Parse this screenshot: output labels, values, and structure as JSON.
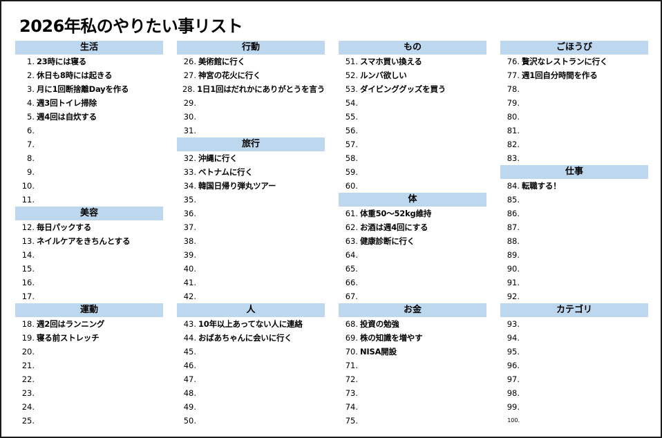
{
  "title": "2026年私のやりたい事リスト",
  "colors": {
    "header_bg": "#bdd7ee",
    "border": "#1a1a1a"
  },
  "columns": [
    {
      "sections": [
        {
          "category": "生活",
          "items": [
            {
              "n": "1.",
              "t": "23時には寝る"
            },
            {
              "n": "2.",
              "t": "休日も8時には起きる"
            },
            {
              "n": "3.",
              "t": "月に1回断捨離Dayを作る"
            },
            {
              "n": "4.",
              "t": "週3回トイレ掃除"
            },
            {
              "n": "5.",
              "t": "週4回は自炊する"
            },
            {
              "n": "6.",
              "t": ""
            },
            {
              "n": "7.",
              "t": ""
            },
            {
              "n": "8.",
              "t": ""
            },
            {
              "n": "9.",
              "t": ""
            },
            {
              "n": "10.",
              "t": ""
            },
            {
              "n": "11.",
              "t": ""
            }
          ]
        },
        {
          "category": "美容",
          "items": [
            {
              "n": "12.",
              "t": "毎日パックする"
            },
            {
              "n": "13.",
              "t": "ネイルケアをきちんとする"
            },
            {
              "n": "14.",
              "t": ""
            },
            {
              "n": "15.",
              "t": ""
            },
            {
              "n": "16.",
              "t": ""
            },
            {
              "n": "17.",
              "t": ""
            }
          ]
        },
        {
          "category": "運動",
          "items": [
            {
              "n": "18.",
              "t": "週2回はランニング"
            },
            {
              "n": "19.",
              "t": "寝る前ストレッチ"
            },
            {
              "n": "20.",
              "t": ""
            },
            {
              "n": "21.",
              "t": ""
            },
            {
              "n": "22.",
              "t": ""
            },
            {
              "n": "23.",
              "t": ""
            },
            {
              "n": "24.",
              "t": ""
            },
            {
              "n": "25.",
              "t": ""
            }
          ]
        }
      ]
    },
    {
      "sections": [
        {
          "category": "行動",
          "items": [
            {
              "n": "26.",
              "t": "美術館に行く"
            },
            {
              "n": "27.",
              "t": "神宮の花火に行く"
            },
            {
              "n": "28.",
              "t": "1日1回はだれかにありがとうを言う"
            },
            {
              "n": "29.",
              "t": ""
            },
            {
              "n": "30.",
              "t": ""
            },
            {
              "n": "31.",
              "t": ""
            }
          ]
        },
        {
          "category": "旅行",
          "items": [
            {
              "n": "32.",
              "t": "沖縄に行く"
            },
            {
              "n": "33.",
              "t": "ベトナムに行く"
            },
            {
              "n": "34.",
              "t": "韓国日帰り弾丸ツアー"
            },
            {
              "n": "35.",
              "t": ""
            },
            {
              "n": "36.",
              "t": ""
            },
            {
              "n": "37.",
              "t": ""
            },
            {
              "n": "38.",
              "t": ""
            },
            {
              "n": "39.",
              "t": ""
            },
            {
              "n": "40.",
              "t": ""
            },
            {
              "n": "41.",
              "t": ""
            },
            {
              "n": "42.",
              "t": ""
            }
          ]
        },
        {
          "category": "人",
          "items": [
            {
              "n": "43.",
              "t": "10年以上あってない人に連絡"
            },
            {
              "n": "44.",
              "t": "おばあちゃんに会いに行く"
            },
            {
              "n": "45.",
              "t": ""
            },
            {
              "n": "46.",
              "t": ""
            },
            {
              "n": "47.",
              "t": ""
            },
            {
              "n": "48.",
              "t": ""
            },
            {
              "n": "49.",
              "t": ""
            },
            {
              "n": "50.",
              "t": ""
            }
          ]
        }
      ]
    },
    {
      "sections": [
        {
          "category": "もの",
          "items": [
            {
              "n": "51.",
              "t": "スマホ買い換える"
            },
            {
              "n": "52.",
              "t": "ルンバ欲しい"
            },
            {
              "n": "53.",
              "t": "ダイビンググッズを買う"
            },
            {
              "n": "54.",
              "t": ""
            },
            {
              "n": "55.",
              "t": ""
            },
            {
              "n": "56.",
              "t": ""
            },
            {
              "n": "57.",
              "t": ""
            },
            {
              "n": "58.",
              "t": ""
            },
            {
              "n": "59.",
              "t": ""
            },
            {
              "n": "60.",
              "t": ""
            }
          ]
        },
        {
          "category": "体",
          "items": [
            {
              "n": "61.",
              "t": "体重50～52kg維持"
            },
            {
              "n": "62.",
              "t": "お酒は週4回にする"
            },
            {
              "n": "63.",
              "t": "健康診断に行く"
            },
            {
              "n": "64.",
              "t": ""
            },
            {
              "n": "65.",
              "t": ""
            },
            {
              "n": "66.",
              "t": ""
            },
            {
              "n": "67.",
              "t": ""
            }
          ]
        },
        {
          "category": "お金",
          "items": [
            {
              "n": "68.",
              "t": "投資の勉強"
            },
            {
              "n": "69.",
              "t": "株の知識を増やす"
            },
            {
              "n": "70.",
              "t": "NISA開設"
            },
            {
              "n": "71.",
              "t": ""
            },
            {
              "n": "72.",
              "t": ""
            },
            {
              "n": "73.",
              "t": ""
            },
            {
              "n": "74.",
              "t": ""
            },
            {
              "n": "75.",
              "t": ""
            }
          ]
        }
      ]
    },
    {
      "sections": [
        {
          "category": "ごほうび",
          "items": [
            {
              "n": "76.",
              "t": "贅沢なレストランに行く"
            },
            {
              "n": "77.",
              "t": "週1回自分時間を作る"
            },
            {
              "n": "78.",
              "t": ""
            },
            {
              "n": "79.",
              "t": ""
            },
            {
              "n": "80.",
              "t": ""
            },
            {
              "n": "81.",
              "t": ""
            },
            {
              "n": "82.",
              "t": ""
            },
            {
              "n": "83.",
              "t": ""
            }
          ]
        },
        {
          "category": "仕事",
          "items": [
            {
              "n": "84.",
              "t": "転職する！"
            },
            {
              "n": "85.",
              "t": ""
            },
            {
              "n": "86.",
              "t": ""
            },
            {
              "n": "87.",
              "t": ""
            },
            {
              "n": "88.",
              "t": ""
            },
            {
              "n": "89.",
              "t": ""
            },
            {
              "n": "90.",
              "t": ""
            },
            {
              "n": "91.",
              "t": ""
            },
            {
              "n": "92.",
              "t": ""
            }
          ]
        },
        {
          "category": "カテゴリ",
          "items": [
            {
              "n": "93.",
              "t": ""
            },
            {
              "n": "94.",
              "t": ""
            },
            {
              "n": "95.",
              "t": ""
            },
            {
              "n": "96.",
              "t": ""
            },
            {
              "n": "97.",
              "t": ""
            },
            {
              "n": "98.",
              "t": ""
            },
            {
              "n": "99.",
              "t": ""
            },
            {
              "n": "100.",
              "t": "",
              "small": true
            }
          ]
        }
      ]
    }
  ]
}
